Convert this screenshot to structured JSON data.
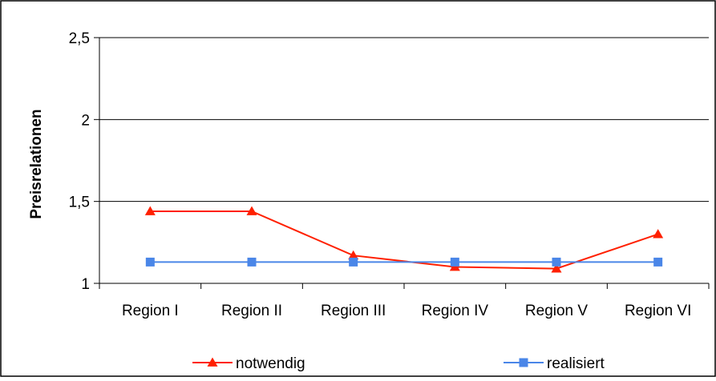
{
  "chart_data": {
    "type": "line",
    "title": "",
    "xlabel": "",
    "ylabel": "Preisrelationen",
    "categories": [
      "Region I",
      "Region II",
      "Region III",
      "Region IV",
      "Region V",
      "Region VI"
    ],
    "ylim": [
      1,
      2.5
    ],
    "yticks": [
      1,
      1.5,
      2,
      2.5
    ],
    "ytick_labels": [
      "1",
      "1,5",
      "2",
      "2,5"
    ],
    "grid": "horizontal",
    "legend_position": "bottom",
    "series": [
      {
        "name": "notwendig",
        "values": [
          1.44,
          1.44,
          1.17,
          1.1,
          1.09,
          1.3
        ],
        "color": "#ff2000",
        "marker": "triangle"
      },
      {
        "name": "realisiert",
        "values": [
          1.13,
          1.13,
          1.13,
          1.13,
          1.13,
          1.13
        ],
        "color": "#4a86e8",
        "marker": "square"
      }
    ]
  }
}
